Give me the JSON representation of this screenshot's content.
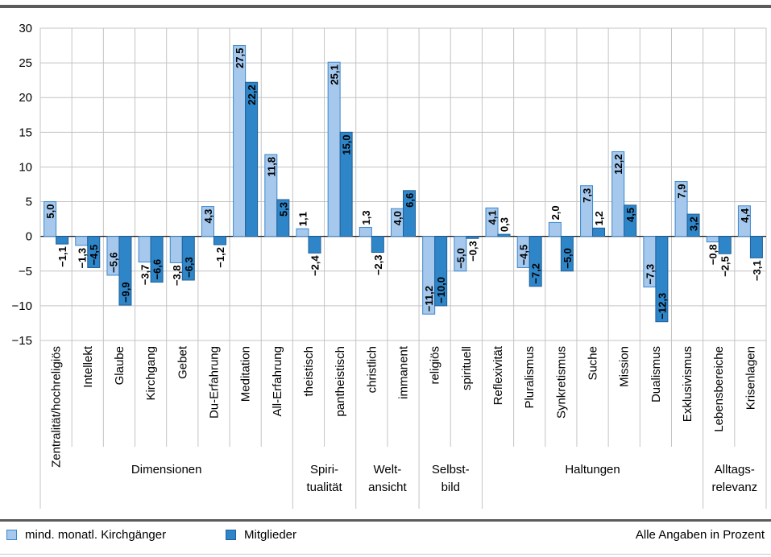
{
  "chart_data": {
    "type": "bar",
    "categories": [
      "Zentralität/hochreligiös",
      "Intellekt",
      "Glaube",
      "Kirchgang",
      "Gebet",
      "Du-Erfahrung",
      "Meditation",
      "All-Erfahrung",
      "theistisch",
      "pantheistisch",
      "christlich",
      "immanent",
      "religiös",
      "spirituell",
      "Reflexivität",
      "Pluralismus",
      "Synkretismus",
      "Suche",
      "Mission",
      "Dualismus",
      "Exklusivismus",
      "Lebensbereiche",
      "Krisenlagen"
    ],
    "series": [
      {
        "name": "mind. monatl. Kirchgänger",
        "color": "#a6c8ec",
        "stroke": "#3b87cc",
        "values": [
          5.0,
          -1.3,
          -5.6,
          -3.7,
          -3.8,
          4.3,
          27.5,
          11.8,
          1.1,
          25.1,
          1.3,
          4.0,
          -11.2,
          -5.0,
          4.1,
          -4.5,
          2.0,
          7.3,
          12.2,
          -7.3,
          7.9,
          -0.8,
          4.4
        ],
        "labels": [
          "5,0",
          "−1,3",
          "−5,6",
          "−3,7",
          "−3,8",
          "4,3",
          "27,5",
          "11,8",
          "1,1",
          "25,1",
          "1,3",
          "4,0",
          "−11,2",
          "−5,0",
          "4,1",
          "−4,5",
          "2,0",
          "7,3",
          "12,2",
          "−7,3",
          "7,9",
          "−0,8",
          "4,4"
        ]
      },
      {
        "name": "Mitglieder",
        "color": "#2e86c9",
        "stroke": "#1f5f99",
        "values": [
          -1.1,
          -4.5,
          -9.9,
          -6.6,
          -6.3,
          -1.2,
          22.2,
          5.3,
          -2.4,
          15.0,
          -2.3,
          6.6,
          -10.0,
          -0.3,
          0.3,
          -7.2,
          -5.0,
          1.2,
          4.5,
          -12.3,
          3.2,
          -2.5,
          -3.1
        ],
        "labels": [
          "−1,1",
          "−4,5",
          "−9,9",
          "−6,6",
          "−6,3",
          "−1,2",
          "22,2",
          "5,3",
          "−2,4",
          "15,0",
          "−2,3",
          "6,6",
          "−10,0",
          "−0,3",
          "0,3",
          "−7,2",
          "−5,0",
          "1,2",
          "4,5",
          "−12,3",
          "3,2",
          "−2,5",
          "−3,1"
        ]
      }
    ],
    "groups": [
      {
        "label": [
          "Dimensionen"
        ],
        "start": 0,
        "end": 7
      },
      {
        "label": [
          "Spiri-",
          "tualität"
        ],
        "start": 8,
        "end": 9
      },
      {
        "label": [
          "Welt-",
          "ansicht"
        ],
        "start": 10,
        "end": 11
      },
      {
        "label": [
          "Selbst-",
          "bild"
        ],
        "start": 12,
        "end": 13
      },
      {
        "label": [
          "Haltungen"
        ],
        "start": 14,
        "end": 20
      },
      {
        "label": [
          "Alltags-",
          "relevanz"
        ],
        "start": 21,
        "end": 22
      }
    ],
    "ylim": [
      -15,
      30
    ],
    "yticks": [
      30,
      25,
      20,
      15,
      10,
      5,
      0,
      -5,
      -10,
      -15
    ],
    "ytick_labels": [
      "30",
      "25",
      "20",
      "15",
      "10",
      "5",
      "0",
      "−5",
      "−10",
      "−15"
    ],
    "grid": true,
    "legend_position": "bottom-left"
  },
  "legend": {
    "item1": "mind. monatl. Kirchgänger",
    "item2": "Mitglieder",
    "color1": "#a6c8ec",
    "stroke1": "#3b87cc",
    "color2": "#2e86c9",
    "stroke2": "#1f5f99"
  },
  "note": "Alle Angaben in Prozent"
}
